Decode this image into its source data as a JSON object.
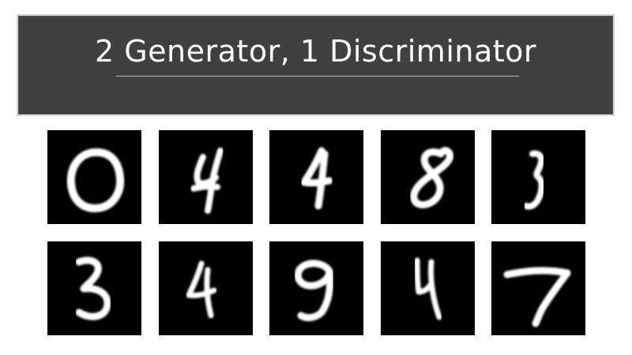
{
  "title": "2 Generator, 1 Discriminator",
  "colors": {
    "banner": "#404040",
    "banner_border": "#d4d4d4",
    "tile": "#000000",
    "glyph": "#ffffff"
  },
  "samples": [
    {
      "digit": "0"
    },
    {
      "digit": "4"
    },
    {
      "digit": "4"
    },
    {
      "digit": "8"
    },
    {
      "digit": "3"
    },
    {
      "digit": "3"
    },
    {
      "digit": "4"
    },
    {
      "digit": "9"
    },
    {
      "digit": "4"
    },
    {
      "digit": "7"
    }
  ]
}
